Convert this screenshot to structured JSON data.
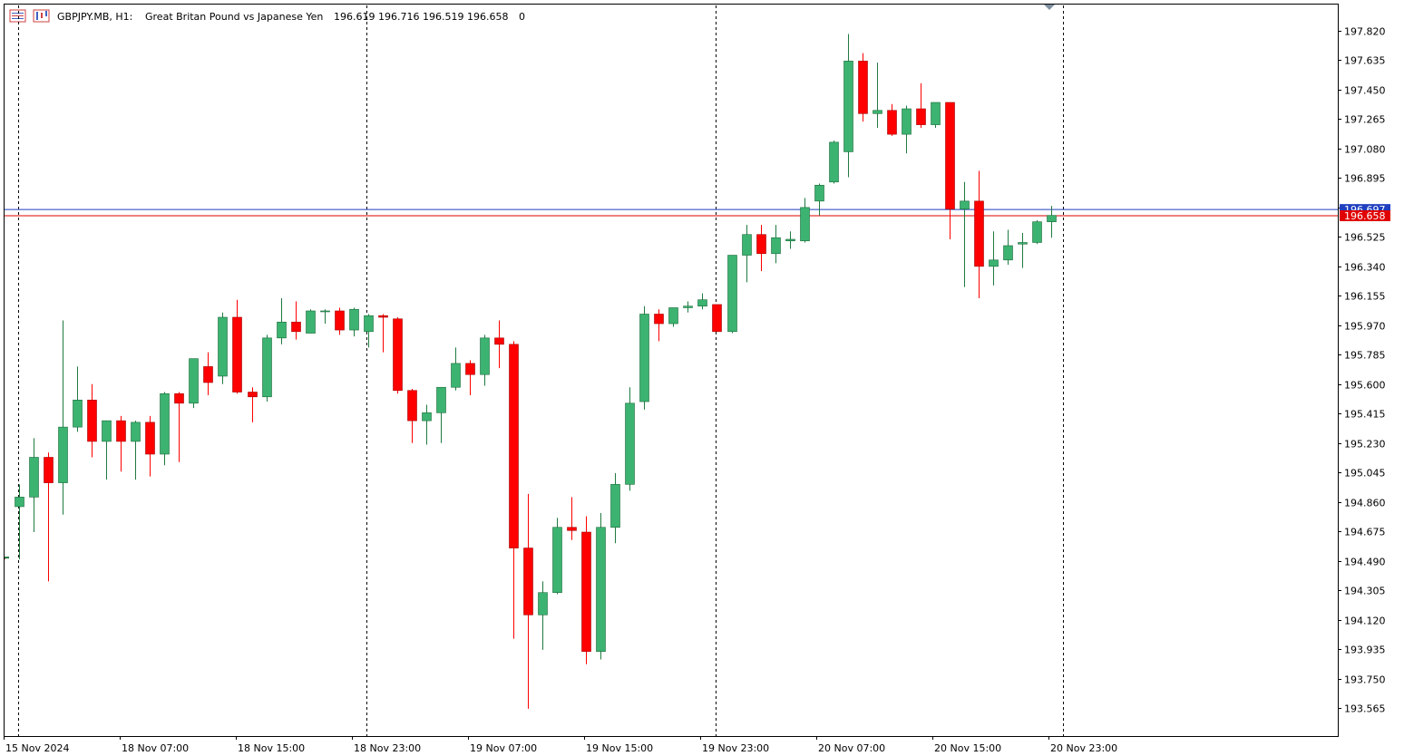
{
  "header": {
    "symbol": "GBPJPY.MB, H1:",
    "description": "Great Britan Pound vs Japanese Yen",
    "ohlc": "196.619 196.716 196.519 196.658",
    "volume": "0"
  },
  "colors": {
    "bull": "#3cb371",
    "bull_border": "#1a6b3a",
    "bear": "#ff0000",
    "bear_border": "#a00000",
    "ask_line": "#1f3fbf",
    "bid_line": "#e00000",
    "grid": "#000000",
    "border": "#000000"
  },
  "chart_data": {
    "type": "candlestick",
    "symbol": "GBPJPY.MB",
    "timeframe": "H1",
    "ylim": [
      193.45,
      197.97
    ],
    "y_ticks": [
      "197.820",
      "197.635",
      "197.450",
      "197.265",
      "197.080",
      "196.895",
      "196.710",
      "196.525",
      "196.340",
      "196.155",
      "195.970",
      "195.785",
      "195.600",
      "195.415",
      "195.230",
      "195.045",
      "194.860",
      "194.675",
      "194.490",
      "194.305",
      "194.120",
      "193.935",
      "193.750",
      "193.565"
    ],
    "x_labels": [
      "15 Nov 2024",
      "18 Nov 07:00",
      "18 Nov 15:00",
      "18 Nov 23:00",
      "19 Nov 07:00",
      "19 Nov 15:00",
      "19 Nov 23:00",
      "20 Nov 07:00",
      "20 Nov 15:00",
      "20 Nov 23:00"
    ],
    "ask_price": "196.697",
    "bid_price": "196.658",
    "candles": [
      {
        "o": 194.51,
        "h": 194.51,
        "l": 194.5,
        "c": 194.5
      },
      {
        "o": 194.83,
        "h": 194.97,
        "l": 194.5,
        "c": 194.89
      },
      {
        "o": 194.89,
        "h": 195.26,
        "l": 194.67,
        "c": 195.14
      },
      {
        "o": 195.14,
        "h": 195.17,
        "l": 194.36,
        "c": 194.98
      },
      {
        "o": 194.98,
        "h": 196.0,
        "l": 194.78,
        "c": 195.33
      },
      {
        "o": 195.33,
        "h": 195.71,
        "l": 195.3,
        "c": 195.5
      },
      {
        "o": 195.5,
        "h": 195.6,
        "l": 195.14,
        "c": 195.24
      },
      {
        "o": 195.24,
        "h": 195.37,
        "l": 195.0,
        "c": 195.37
      },
      {
        "o": 195.37,
        "h": 195.4,
        "l": 195.05,
        "c": 195.24
      },
      {
        "o": 195.24,
        "h": 195.37,
        "l": 195.0,
        "c": 195.36
      },
      {
        "o": 195.36,
        "h": 195.4,
        "l": 195.02,
        "c": 195.16
      },
      {
        "o": 195.16,
        "h": 195.55,
        "l": 195.09,
        "c": 195.54
      },
      {
        "o": 195.54,
        "h": 195.55,
        "l": 195.11,
        "c": 195.48
      },
      {
        "o": 195.48,
        "h": 195.76,
        "l": 195.45,
        "c": 195.76
      },
      {
        "o": 195.71,
        "h": 195.8,
        "l": 195.53,
        "c": 195.61
      },
      {
        "o": 195.65,
        "h": 196.05,
        "l": 195.6,
        "c": 196.02
      },
      {
        "o": 196.02,
        "h": 196.13,
        "l": 195.54,
        "c": 195.55
      },
      {
        "o": 195.55,
        "h": 195.58,
        "l": 195.36,
        "c": 195.52
      },
      {
        "o": 195.52,
        "h": 195.91,
        "l": 195.49,
        "c": 195.89
      },
      {
        "o": 195.89,
        "h": 196.14,
        "l": 195.85,
        "c": 195.99
      },
      {
        "o": 195.99,
        "h": 196.12,
        "l": 195.88,
        "c": 195.93
      },
      {
        "o": 195.92,
        "h": 196.07,
        "l": 195.92,
        "c": 196.06
      },
      {
        "o": 196.06,
        "h": 196.07,
        "l": 195.98,
        "c": 196.06
      },
      {
        "o": 196.06,
        "h": 196.08,
        "l": 195.91,
        "c": 195.94
      },
      {
        "o": 195.94,
        "h": 196.08,
        "l": 195.9,
        "c": 196.07
      },
      {
        "o": 195.93,
        "h": 196.04,
        "l": 195.83,
        "c": 196.03
      },
      {
        "o": 196.03,
        "h": 196.04,
        "l": 195.8,
        "c": 196.02
      },
      {
        "o": 196.01,
        "h": 196.02,
        "l": 195.54,
        "c": 195.56
      },
      {
        "o": 195.56,
        "h": 195.57,
        "l": 195.23,
        "c": 195.37
      },
      {
        "o": 195.37,
        "h": 195.47,
        "l": 195.22,
        "c": 195.42
      },
      {
        "o": 195.42,
        "h": 195.58,
        "l": 195.23,
        "c": 195.58
      },
      {
        "o": 195.58,
        "h": 195.83,
        "l": 195.56,
        "c": 195.73
      },
      {
        "o": 195.73,
        "h": 195.75,
        "l": 195.53,
        "c": 195.66
      },
      {
        "o": 195.66,
        "h": 195.91,
        "l": 195.59,
        "c": 195.89
      },
      {
        "o": 195.89,
        "h": 196.0,
        "l": 195.7,
        "c": 195.85
      },
      {
        "o": 195.85,
        "h": 195.87,
        "l": 194.0,
        "c": 194.57
      },
      {
        "o": 194.57,
        "h": 194.91,
        "l": 193.56,
        "c": 194.15
      },
      {
        "o": 194.15,
        "h": 194.36,
        "l": 193.93,
        "c": 194.29
      },
      {
        "o": 194.29,
        "h": 194.76,
        "l": 194.28,
        "c": 194.7
      },
      {
        "o": 194.7,
        "h": 194.89,
        "l": 194.62,
        "c": 194.68
      },
      {
        "o": 194.67,
        "h": 194.77,
        "l": 193.84,
        "c": 193.92
      },
      {
        "o": 193.92,
        "h": 194.79,
        "l": 193.87,
        "c": 194.7
      },
      {
        "o": 194.7,
        "h": 195.04,
        "l": 194.6,
        "c": 194.97
      },
      {
        "o": 194.97,
        "h": 195.58,
        "l": 194.93,
        "c": 195.48
      },
      {
        "o": 195.49,
        "h": 196.09,
        "l": 195.44,
        "c": 196.04
      },
      {
        "o": 196.04,
        "h": 196.07,
        "l": 195.87,
        "c": 195.98
      },
      {
        "o": 195.98,
        "h": 196.08,
        "l": 195.96,
        "c": 196.08
      },
      {
        "o": 196.08,
        "h": 196.12,
        "l": 196.05,
        "c": 196.09
      },
      {
        "o": 196.09,
        "h": 196.17,
        "l": 196.07,
        "c": 196.13
      },
      {
        "o": 196.1,
        "h": 196.1,
        "l": 195.93,
        "c": 195.93
      },
      {
        "o": 195.93,
        "h": 196.41,
        "l": 195.92,
        "c": 196.41
      },
      {
        "o": 196.41,
        "h": 196.6,
        "l": 196.24,
        "c": 196.54
      },
      {
        "o": 196.54,
        "h": 196.6,
        "l": 196.31,
        "c": 196.42
      },
      {
        "o": 196.42,
        "h": 196.6,
        "l": 196.36,
        "c": 196.52
      },
      {
        "o": 196.5,
        "h": 196.56,
        "l": 196.45,
        "c": 196.51
      },
      {
        "o": 196.5,
        "h": 196.77,
        "l": 196.49,
        "c": 196.71
      },
      {
        "o": 196.75,
        "h": 196.86,
        "l": 196.66,
        "c": 196.85
      },
      {
        "o": 196.87,
        "h": 197.13,
        "l": 196.86,
        "c": 197.12
      },
      {
        "o": 197.06,
        "h": 197.8,
        "l": 196.9,
        "c": 197.63
      },
      {
        "o": 197.63,
        "h": 197.68,
        "l": 197.25,
        "c": 197.3
      },
      {
        "o": 197.3,
        "h": 197.62,
        "l": 197.21,
        "c": 197.32
      },
      {
        "o": 197.32,
        "h": 197.36,
        "l": 197.16,
        "c": 197.17
      },
      {
        "o": 197.17,
        "h": 197.35,
        "l": 197.05,
        "c": 197.33
      },
      {
        "o": 197.33,
        "h": 197.49,
        "l": 197.21,
        "c": 197.23
      },
      {
        "o": 197.23,
        "h": 197.37,
        "l": 197.21,
        "c": 197.37
      },
      {
        "o": 197.37,
        "h": 197.37,
        "l": 196.51,
        "c": 196.7
      },
      {
        "o": 196.7,
        "h": 196.87,
        "l": 196.21,
        "c": 196.75
      },
      {
        "o": 196.75,
        "h": 196.94,
        "l": 196.14,
        "c": 196.34
      },
      {
        "o": 196.34,
        "h": 196.56,
        "l": 196.22,
        "c": 196.38
      },
      {
        "o": 196.38,
        "h": 196.57,
        "l": 196.35,
        "c": 196.47
      },
      {
        "o": 196.48,
        "h": 196.55,
        "l": 196.33,
        "c": 196.49
      },
      {
        "o": 196.49,
        "h": 196.63,
        "l": 196.48,
        "c": 196.62
      },
      {
        "o": 196.62,
        "h": 196.72,
        "l": 196.52,
        "c": 196.66
      }
    ]
  }
}
